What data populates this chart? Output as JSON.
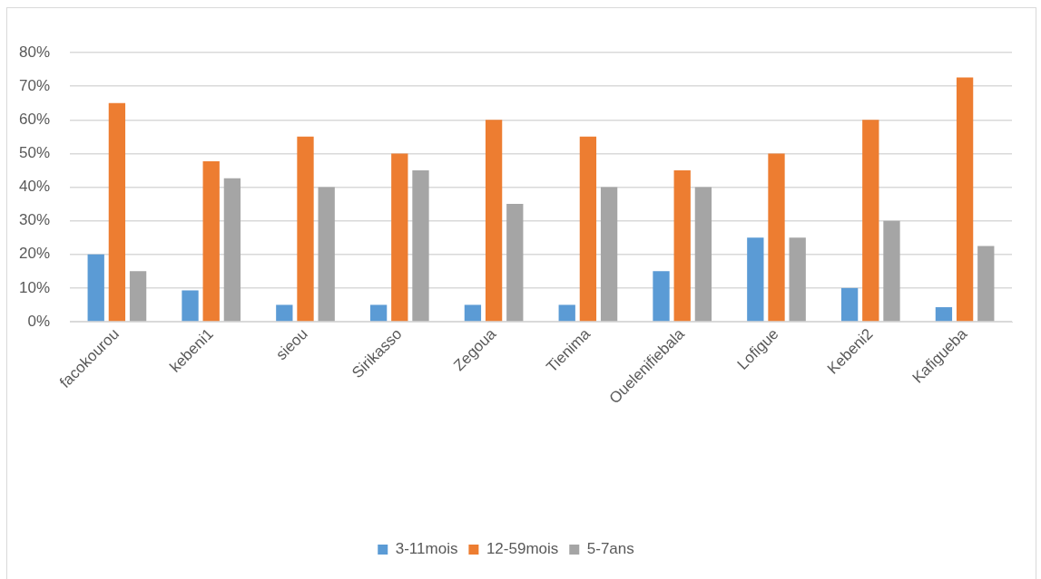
{
  "chart_data": {
    "type": "bar",
    "categories": [
      "facokourou",
      "kebeni1",
      "sieou",
      "Sirikasso",
      "Zegoua",
      "Tienima",
      "Ouelenifiebala",
      "Lofigue",
      "Kebeni2",
      "Kafigueba"
    ],
    "series": [
      {
        "name": "3-11mois",
        "color": "#5b9bd5",
        "values": [
          20,
          9.3,
          5,
          5,
          5,
          5,
          15,
          25,
          10,
          4.3
        ]
      },
      {
        "name": "12-59mois",
        "color": "#ed7d31",
        "values": [
          65,
          47.7,
          55,
          50,
          60,
          55,
          45,
          50,
          60,
          72.6
        ]
      },
      {
        "name": "5-7ans",
        "color": "#a5a5a5",
        "values": [
          15,
          42.6,
          40,
          45,
          35,
          40,
          40,
          25,
          30,
          22.5
        ]
      }
    ],
    "ylim": [
      0,
      80
    ],
    "yticks": [
      {
        "value": 0,
        "label": "0%"
      },
      {
        "value": 10,
        "label": "10%"
      },
      {
        "value": 20,
        "label": "20%"
      },
      {
        "value": 30,
        "label": "30%"
      },
      {
        "value": 40,
        "label": "40%"
      },
      {
        "value": 50,
        "label": "50%"
      },
      {
        "value": 60,
        "label": "60%"
      },
      {
        "value": 70,
        "label": "70%"
      },
      {
        "value": 80,
        "label": "80%"
      }
    ],
    "grid": "y",
    "legend": "bottom"
  }
}
